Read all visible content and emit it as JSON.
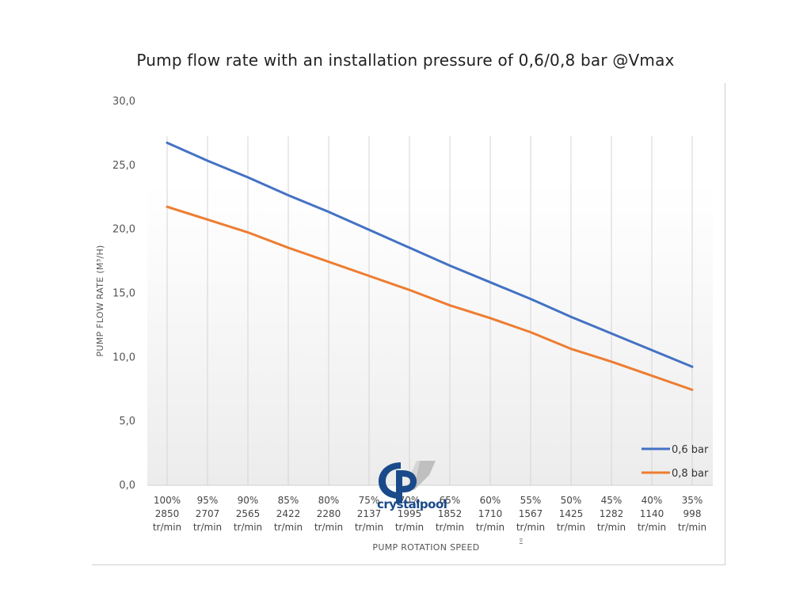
{
  "chart_data": {
    "type": "line",
    "title": "Pump flow rate with an installation pressure of  0,6/0,8 bar @Vmax",
    "xlabel": "PUMP ROTATION SPEED",
    "ylabel": "PUMP FLOW RATE (M³/H)",
    "ylim": [
      0,
      30
    ],
    "yticks": [
      "0,0",
      "5,0",
      "10,0",
      "15,0",
      "20,0",
      "25,0",
      "30,0"
    ],
    "ytick_values": [
      0,
      5,
      10,
      15,
      20,
      25,
      30
    ],
    "grid": "vertical",
    "legend_position": "bottom-right",
    "categories": [
      {
        "pct": "100%",
        "rpm": "2850",
        "unit": "tr/min"
      },
      {
        "pct": "95%",
        "rpm": "2707",
        "unit": "tr/min"
      },
      {
        "pct": "90%",
        "rpm": "2565",
        "unit": "tr/min"
      },
      {
        "pct": "85%",
        "rpm": "2422",
        "unit": "tr/min"
      },
      {
        "pct": "80%",
        "rpm": "2280",
        "unit": "tr/min"
      },
      {
        "pct": "75%",
        "rpm": "2137",
        "unit": "tr/min"
      },
      {
        "pct": "70%",
        "rpm": "1995",
        "unit": "tr/min"
      },
      {
        "pct": "65%",
        "rpm": "1852",
        "unit": "tr/min"
      },
      {
        "pct": "60%",
        "rpm": "1710",
        "unit": "tr/min"
      },
      {
        "pct": "55%",
        "rpm": "1567",
        "unit": "tr/min"
      },
      {
        "pct": "50%",
        "rpm": "1425",
        "unit": "tr/min"
      },
      {
        "pct": "45%",
        "rpm": "1282",
        "unit": "tr/min"
      },
      {
        "pct": "40%",
        "rpm": "1140",
        "unit": "tr/min"
      },
      {
        "pct": "35%",
        "rpm": "998",
        "unit": "tr/min"
      }
    ],
    "series": [
      {
        "name": "0,6 bar",
        "color": "#4472c4",
        "values": [
          26.7,
          25.3,
          24.0,
          22.6,
          21.3,
          19.9,
          18.5,
          17.1,
          15.8,
          14.5,
          13.1,
          11.8,
          10.5,
          9.2
        ]
      },
      {
        "name": "0,8 bar",
        "color": "#ed7d31",
        "values": [
          21.7,
          20.7,
          19.7,
          18.5,
          17.4,
          16.3,
          15.2,
          14.0,
          13.0,
          11.9,
          10.6,
          9.6,
          8.5,
          7.4
        ]
      }
    ]
  },
  "watermark": {
    "brand_text": "crystalpool",
    "brand_color": "#1a4a8a"
  },
  "stray_mark": "Ξ"
}
